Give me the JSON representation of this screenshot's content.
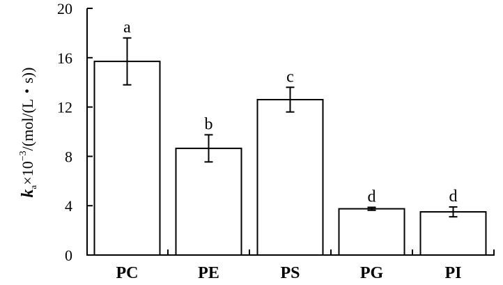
{
  "chart_data": {
    "type": "bar",
    "categories": [
      "PC",
      "PE",
      "PS",
      "PG",
      "PI"
    ],
    "values": [
      15.7,
      8.65,
      12.6,
      3.75,
      3.5
    ],
    "errors": [
      1.9,
      1.1,
      1.0,
      0.12,
      0.4
    ],
    "significance_letters": [
      "a",
      "b",
      "c",
      "d",
      "d"
    ],
    "ylabel": {
      "symbol": "k",
      "subscript": "a",
      "rest": "×10",
      "exponent": "−3",
      "unit": "/(mol/(L・s))"
    },
    "ylim": [
      0,
      20
    ],
    "yticks": [
      "0",
      "4",
      "8",
      "12",
      "16",
      "20"
    ],
    "grid": false,
    "bar_fill": "#ffffff",
    "bar_stroke": "#000000"
  }
}
